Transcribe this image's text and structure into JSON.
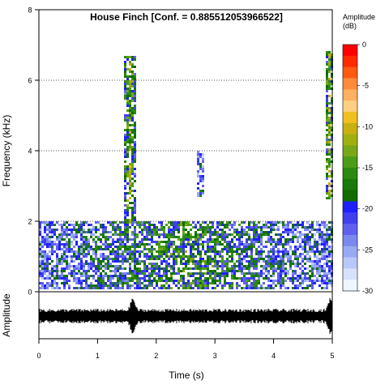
{
  "chart_data": {
    "type": "heatmap",
    "title": "House Finch [Conf. = 0.885512053966522]",
    "xlabel": "Time (s)",
    "ylabel": "Frequency (kHz)",
    "wave_ylabel": "Amplitude",
    "xlim": [
      0,
      5
    ],
    "ylim": [
      0,
      8
    ],
    "x_ticks": [
      "0",
      "1",
      "2",
      "3",
      "4",
      "5"
    ],
    "y_ticks": [
      "0",
      "2",
      "4",
      "6",
      "8"
    ],
    "grid": "dotted horizontal at 2, 4, 6 kHz",
    "colorbar": {
      "title": "Amplitude\n(dB)",
      "range": [
        -30,
        0
      ],
      "ticks": [
        "0",
        "-5",
        "-10",
        "-15",
        "-20",
        "-25",
        "-30"
      ]
    },
    "energy_regions": [
      {
        "name": "low-frequency background band",
        "t": [
          0,
          5
        ],
        "f": [
          0.05,
          2.0
        ],
        "level_db": -17
      },
      {
        "name": "call at 1.55 s",
        "t": [
          1.45,
          1.65
        ],
        "f": [
          1.9,
          6.7
        ],
        "level_db": -14
      },
      {
        "name": "call at 2.75 s",
        "t": [
          2.68,
          2.82
        ],
        "f": [
          2.7,
          4.0
        ],
        "level_db": -20
      },
      {
        "name": "call at 4.95 s",
        "t": [
          4.9,
          5.0
        ],
        "f": [
          2.6,
          6.8
        ],
        "level_db": -13
      }
    ],
    "waveform_peaks_s": [
      1.6,
      4.97
    ]
  }
}
